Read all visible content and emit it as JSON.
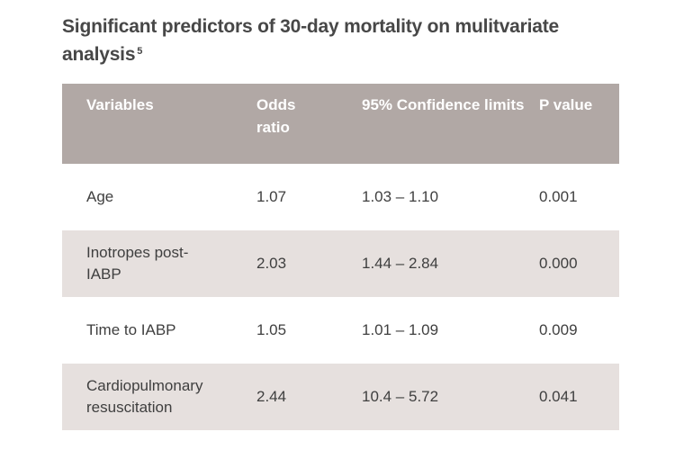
{
  "title": {
    "text": "Significant predictors of 30-day mortality on mulitvariate analysis",
    "reference": "5"
  },
  "table": {
    "headers": [
      "Variables",
      "Odds ratio",
      "95% Confidence limits",
      "P value"
    ],
    "rows": [
      [
        "Age",
        "1.07",
        "1.03 – 1.10",
        "0.001"
      ],
      [
        "Inotropes post-IABP",
        "2.03",
        "1.44 – 2.84",
        "0.000"
      ],
      [
        "Time to IABP",
        "1.05",
        "1.01 – 1.09",
        "0.009"
      ],
      [
        "Cardiopulmonary resuscitation",
        "2.44",
        "10.4 – 5.72",
        "0.041"
      ]
    ]
  },
  "colors": {
    "header_bg": "#b1a8a5",
    "stripe_bg": "#e6e0de",
    "title_text": "#474747"
  }
}
